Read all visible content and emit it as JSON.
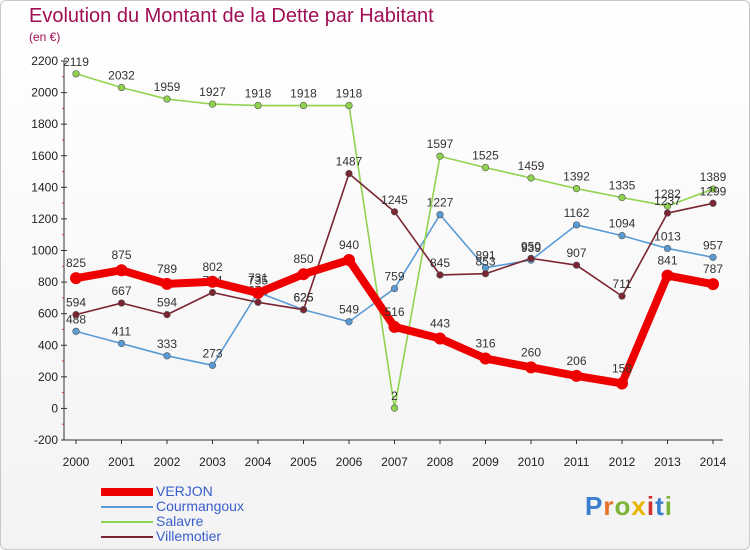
{
  "header": {
    "title": "Evolution du Montant de la Dette par Habitant",
    "subtitle": "(en €)"
  },
  "logo": {
    "letters": [
      "P",
      "r",
      "o",
      "x",
      "i",
      "t",
      "i"
    ],
    "colors": [
      "#3a7fcf",
      "#e8712a",
      "#7cb33a",
      "#e8b400",
      "#d0312d",
      "#3a7fcf",
      "#7cb33a"
    ]
  },
  "chart_data": {
    "type": "line",
    "title": "Evolution du Montant de la Dette par Habitant",
    "subtitle": "(en €)",
    "x": [
      "2000",
      "2001",
      "2002",
      "2003",
      "2004",
      "2005",
      "2006",
      "2007",
      "2008",
      "2009",
      "2010",
      "2011",
      "2012",
      "2013",
      "2014"
    ],
    "ylim": [
      -200,
      2200
    ],
    "yticks": [
      2200,
      2000,
      1800,
      1600,
      1400,
      1200,
      1000,
      800,
      600,
      400,
      200,
      0,
      -200
    ],
    "grid": false,
    "legend_position": "bottom-left",
    "series": [
      {
        "name": "Courmangoux",
        "color": "#5b9bd5",
        "values": [
          488,
          411,
          333,
          273,
          735,
          625,
          549,
          759,
          1227,
          891,
          939,
          1162,
          1094,
          1013,
          957
        ],
        "labels": [
          "488",
          "411",
          "333",
          "273",
          "735",
          "625",
          "549",
          "759",
          "1227",
          "891",
          "939",
          "1162",
          "1094",
          "1013",
          "957"
        ]
      },
      {
        "name": "Salavre",
        "color": "#8fd34e",
        "values": [
          2119,
          2032,
          1959,
          1927,
          1918,
          1918,
          1918,
          2,
          1597,
          1525,
          1459,
          1392,
          1335,
          1282,
          1389
        ],
        "labels": [
          "2119",
          "2032",
          "1959",
          "1927",
          "1918",
          "1918",
          "1918",
          "2",
          "1597",
          "1525",
          "1459",
          "1392",
          "1335",
          "1282",
          "1389"
        ]
      },
      {
        "name": "Villemotier",
        "color": "#7a2531",
        "values": [
          594,
          667,
          594,
          734,
          672,
          625,
          1487,
          1245,
          845,
          853,
          950,
          907,
          711,
          1237,
          1299
        ],
        "labels": [
          "594",
          "667",
          "594",
          "734",
          "672",
          "625",
          "1487",
          "1245",
          "845",
          "853",
          "950",
          "907",
          "711",
          "1237",
          "1299"
        ]
      },
      {
        "name": "VERJON",
        "color": "#ee0000",
        "values": [
          825,
          875,
          789,
          802,
          731,
          850,
          940,
          516,
          443,
          316,
          260,
          206,
          158,
          841,
          787
        ],
        "labels": [
          "825",
          "875",
          "789",
          "802",
          "731",
          "850",
          "940",
          "516",
          "443",
          "316",
          "260",
          "206",
          "158",
          "841",
          "787"
        ]
      }
    ]
  }
}
